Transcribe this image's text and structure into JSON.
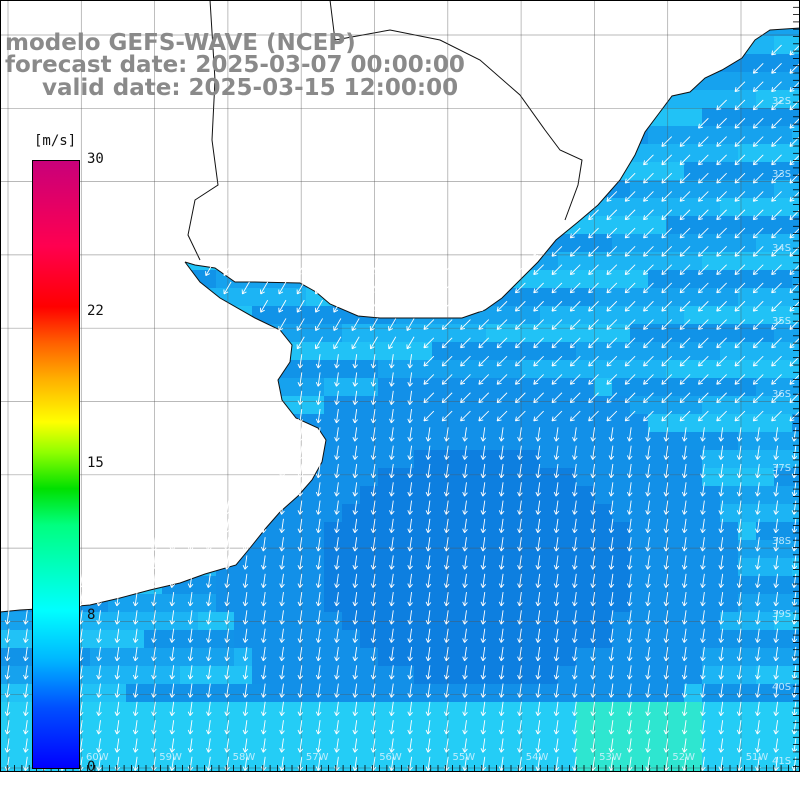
{
  "title": {
    "line1": "modelo GEFS-WAVE (NCEP)",
    "line2": "forecast date: 2025-03-07 00:00:00",
    "line3": "valid date: 2025-03-15 12:00:00"
  },
  "colorbar": {
    "unit": "[m/s]",
    "ticks": [
      "30",
      "22",
      "15",
      "8",
      "0"
    ],
    "min": 0,
    "max": 30,
    "colors": [
      "#0000ff",
      "#00b8ff",
      "#00ffff",
      "#00ff80",
      "#00e000",
      "#ffff00",
      "#ff6000",
      "#ff0000",
      "#c8007a"
    ]
  },
  "map": {
    "ocean_color": "#1aa6f0",
    "land_color": "#ffffff",
    "vector_color": "#ffffff",
    "wind_direction": "from north-northeast"
  },
  "lon_labels": [
    "60W",
    "59W",
    "58W",
    "57W",
    "56W",
    "55W",
    "54W",
    "53W",
    "52W",
    "51W"
  ],
  "lat_labels": [
    "32S",
    "33S",
    "34S",
    "35S",
    "36S",
    "37S",
    "38S",
    "39S",
    "40S",
    "41S"
  ]
}
